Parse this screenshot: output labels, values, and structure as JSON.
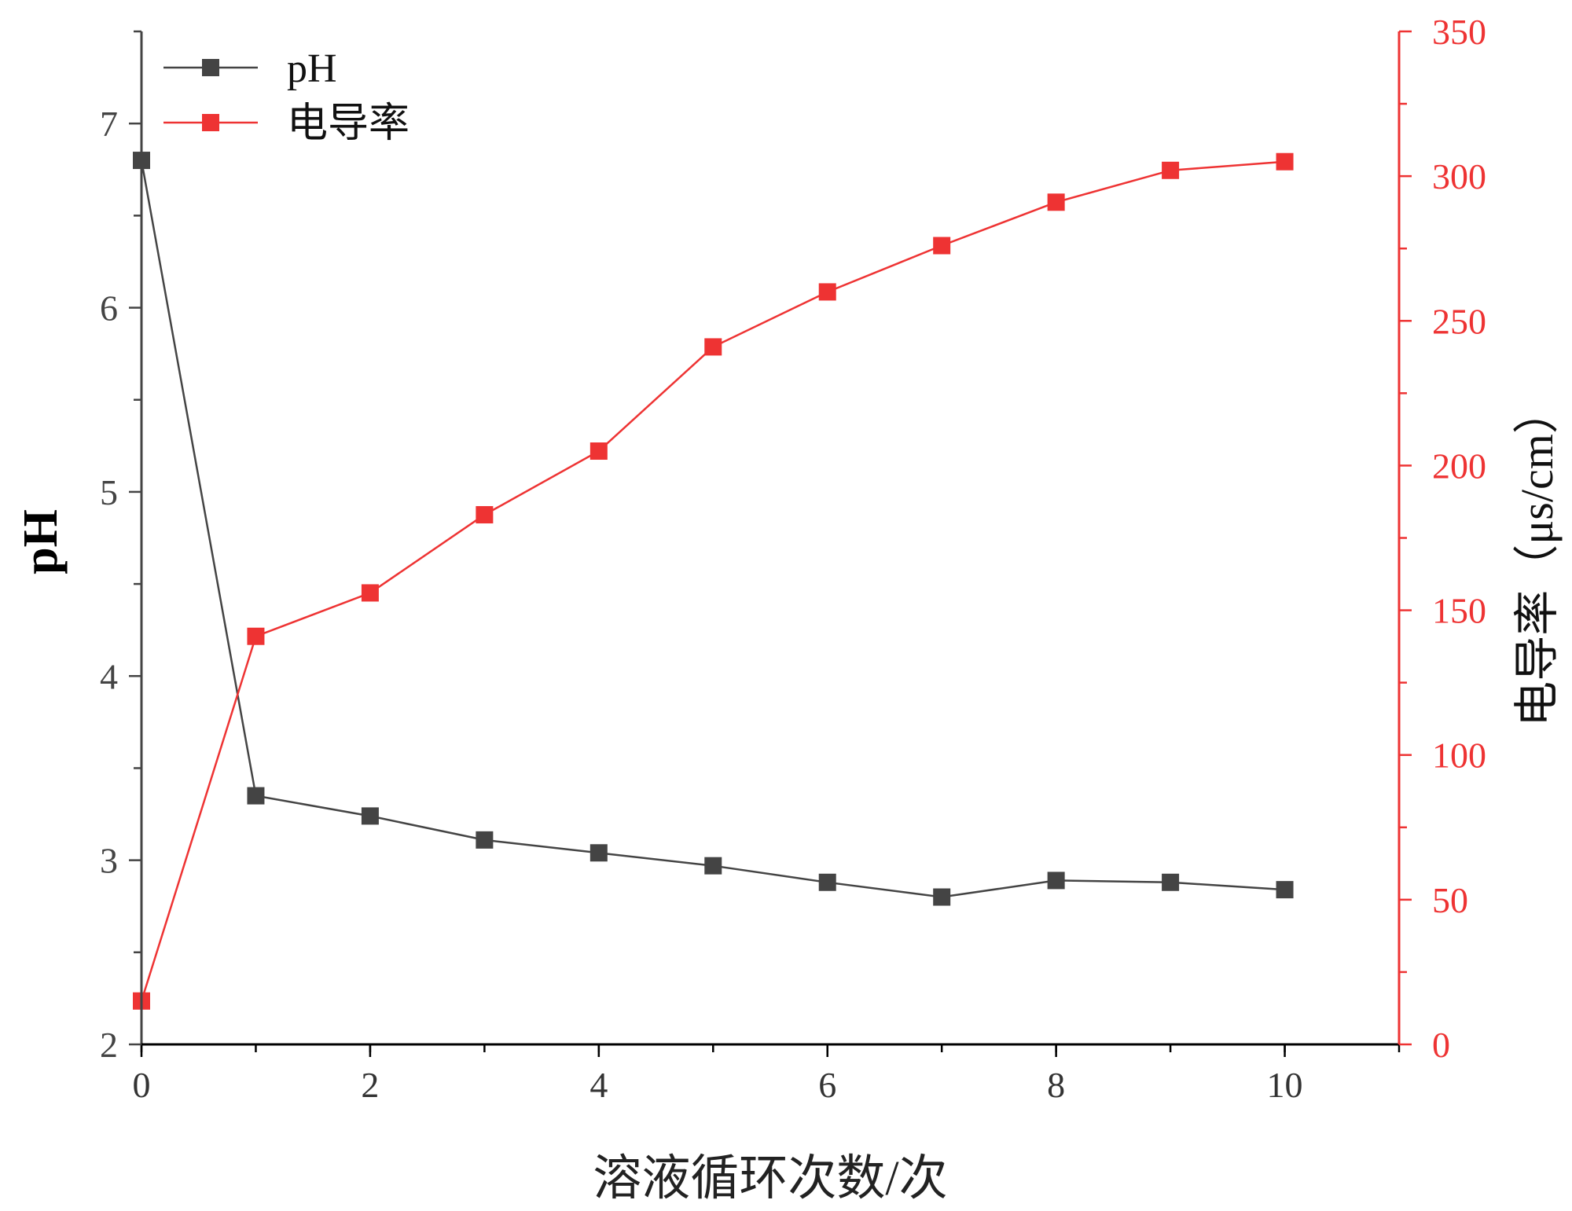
{
  "chart_data": {
    "type": "line",
    "x": [
      0,
      1,
      2,
      3,
      4,
      5,
      6,
      7,
      8,
      9,
      10
    ],
    "xlabel": "溶液循环次数/次",
    "xlim": [
      0,
      11
    ],
    "xticks": [
      0,
      2,
      4,
      6,
      8,
      10
    ],
    "ylabel": "pH",
    "ylim": [
      2,
      7.5
    ],
    "yticks": [
      2,
      3,
      4,
      5,
      6,
      7
    ],
    "y2label": "电导率（μs/cm）",
    "y2lim": [
      0,
      350
    ],
    "y2ticks": [
      0,
      50,
      100,
      150,
      200,
      250,
      300,
      350
    ],
    "legend_position": "top-left",
    "grid": false,
    "series": [
      {
        "name": "pH",
        "axis": "left",
        "color": "#444444",
        "marker": "square",
        "values": [
          6.8,
          3.35,
          3.24,
          3.11,
          3.04,
          2.97,
          2.88,
          2.8,
          2.89,
          2.88,
          2.84
        ]
      },
      {
        "name": "电导率",
        "axis": "right",
        "color": "#ee3333",
        "marker": "square",
        "values": [
          15,
          141,
          156,
          183,
          205,
          241,
          260,
          276,
          291,
          302,
          305
        ]
      }
    ]
  }
}
